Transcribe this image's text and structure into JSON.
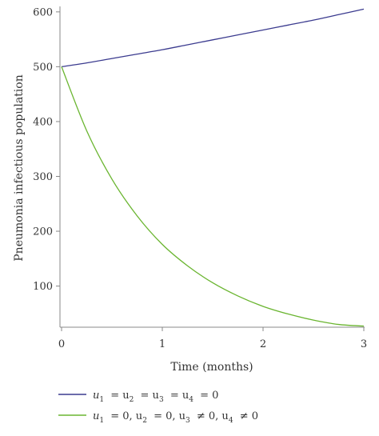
{
  "chart_data": {
    "type": "line",
    "title": "",
    "xlabel": "Time (months)",
    "ylabel": "Pneumonia infectious population",
    "xlim": [
      0,
      3
    ],
    "ylim": [
      25,
      610
    ],
    "xticks": [
      0,
      1,
      2,
      3
    ],
    "yticks": [
      100,
      200,
      300,
      400,
      500,
      600
    ],
    "grid": false,
    "legend_position": "bottom",
    "series": [
      {
        "label_parts": [
          [
            "u",
            "1"
          ],
          [
            "= u",
            "2"
          ],
          [
            "= u",
            "3"
          ],
          [
            "= u",
            "4"
          ],
          [
            "= 0",
            ""
          ]
        ],
        "color": "#3b3b8f",
        "x": [
          0,
          0.25,
          0.5,
          0.75,
          1.0,
          1.25,
          1.5,
          1.75,
          2.0,
          2.25,
          2.5,
          2.75,
          3.0
        ],
        "y": [
          500,
          507,
          515,
          523,
          531,
          540,
          549,
          558,
          567,
          576,
          585,
          595,
          605
        ]
      },
      {
        "label_parts": [
          [
            "u",
            "1"
          ],
          [
            "= 0, u",
            "2"
          ],
          [
            "= 0, u",
            "3"
          ],
          [
            "≠ 0, u",
            "4"
          ],
          [
            "≠ 0",
            ""
          ]
        ],
        "color": "#6ab530",
        "x": [
          0,
          0.25,
          0.5,
          0.75,
          1.0,
          1.25,
          1.5,
          1.75,
          2.0,
          2.25,
          2.5,
          2.75,
          3.0
        ],
        "y": [
          500,
          383,
          295,
          228,
          176,
          137,
          106,
          82,
          63,
          49,
          38,
          30,
          27
        ]
      }
    ]
  }
}
